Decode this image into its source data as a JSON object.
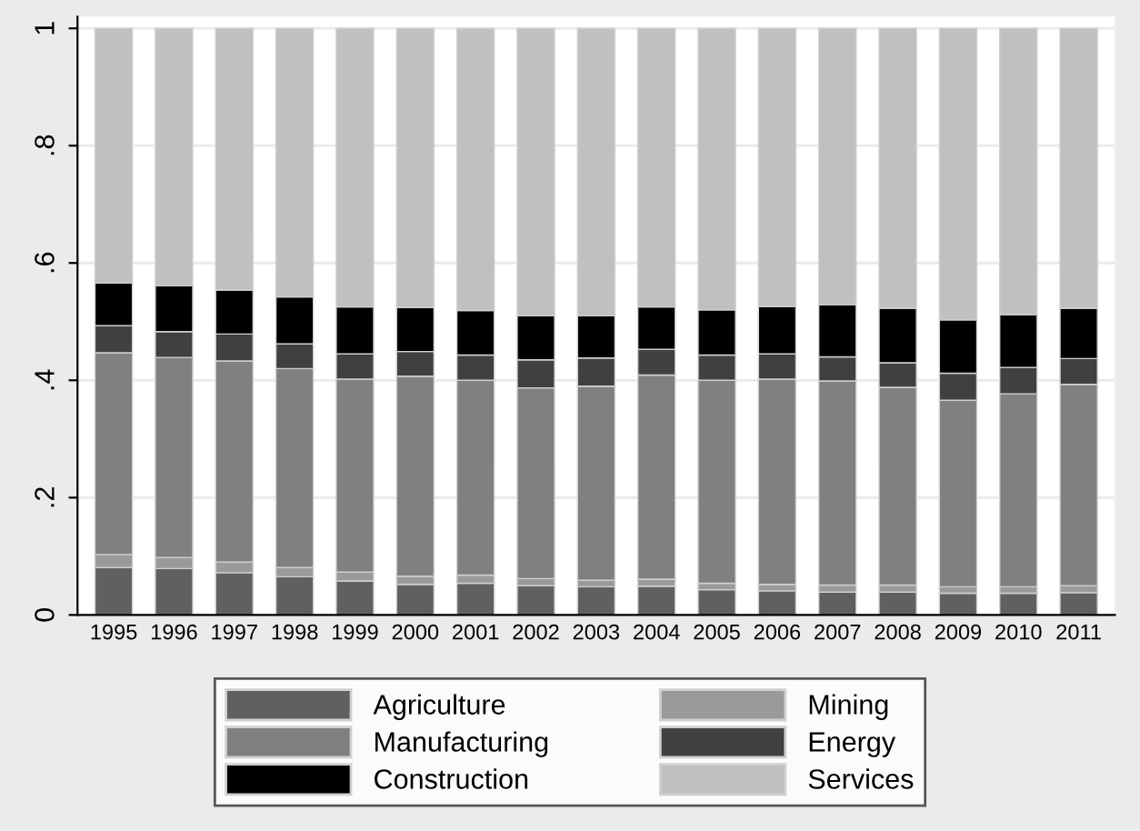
{
  "chart_data": {
    "type": "bar",
    "stacked": true,
    "categories": [
      "1995",
      "1996",
      "1997",
      "1998",
      "1999",
      "2000",
      "2001",
      "2002",
      "2003",
      "2004",
      "2005",
      "2006",
      "2007",
      "2008",
      "2009",
      "2010",
      "2011"
    ],
    "series": [
      {
        "name": "Agriculture",
        "color": "#606060",
        "values": [
          0.081,
          0.079,
          0.072,
          0.065,
          0.058,
          0.052,
          0.054,
          0.05,
          0.048,
          0.049,
          0.043,
          0.041,
          0.039,
          0.039,
          0.037,
          0.037,
          0.038
        ]
      },
      {
        "name": "Mining",
        "color": "#9a9a9a",
        "values": [
          0.022,
          0.019,
          0.018,
          0.016,
          0.015,
          0.014,
          0.014,
          0.012,
          0.011,
          0.012,
          0.011,
          0.011,
          0.012,
          0.012,
          0.011,
          0.011,
          0.012
        ]
      },
      {
        "name": "Manufacturing",
        "color": "#808080",
        "values": [
          0.344,
          0.341,
          0.343,
          0.339,
          0.329,
          0.341,
          0.332,
          0.325,
          0.331,
          0.348,
          0.346,
          0.35,
          0.348,
          0.337,
          0.318,
          0.329,
          0.343
        ]
      },
      {
        "name": "Energy",
        "color": "#404040",
        "values": [
          0.046,
          0.044,
          0.046,
          0.042,
          0.043,
          0.042,
          0.043,
          0.048,
          0.048,
          0.044,
          0.043,
          0.043,
          0.041,
          0.042,
          0.046,
          0.045,
          0.044
        ]
      },
      {
        "name": "Construction",
        "color": "#000000",
        "values": [
          0.073,
          0.078,
          0.075,
          0.08,
          0.08,
          0.075,
          0.076,
          0.075,
          0.072,
          0.072,
          0.077,
          0.081,
          0.089,
          0.093,
          0.091,
          0.09,
          0.086
        ]
      },
      {
        "name": "Services",
        "color": "#c0c0c0",
        "values": [
          0.434,
          0.439,
          0.446,
          0.458,
          0.475,
          0.476,
          0.481,
          0.49,
          0.49,
          0.475,
          0.48,
          0.474,
          0.471,
          0.477,
          0.497,
          0.488,
          0.477
        ]
      }
    ],
    "ylim": [
      0,
      1.02
    ],
    "yticks": [
      {
        "value": 0,
        "label": "0"
      },
      {
        "value": 0.2,
        "label": ".2"
      },
      {
        "value": 0.4,
        "label": ".4"
      },
      {
        "value": 0.6,
        "label": ".6"
      },
      {
        "value": 0.8,
        "label": ".8"
      },
      {
        "value": 1,
        "label": "1"
      }
    ],
    "grid": "y",
    "legend": "bottom"
  }
}
